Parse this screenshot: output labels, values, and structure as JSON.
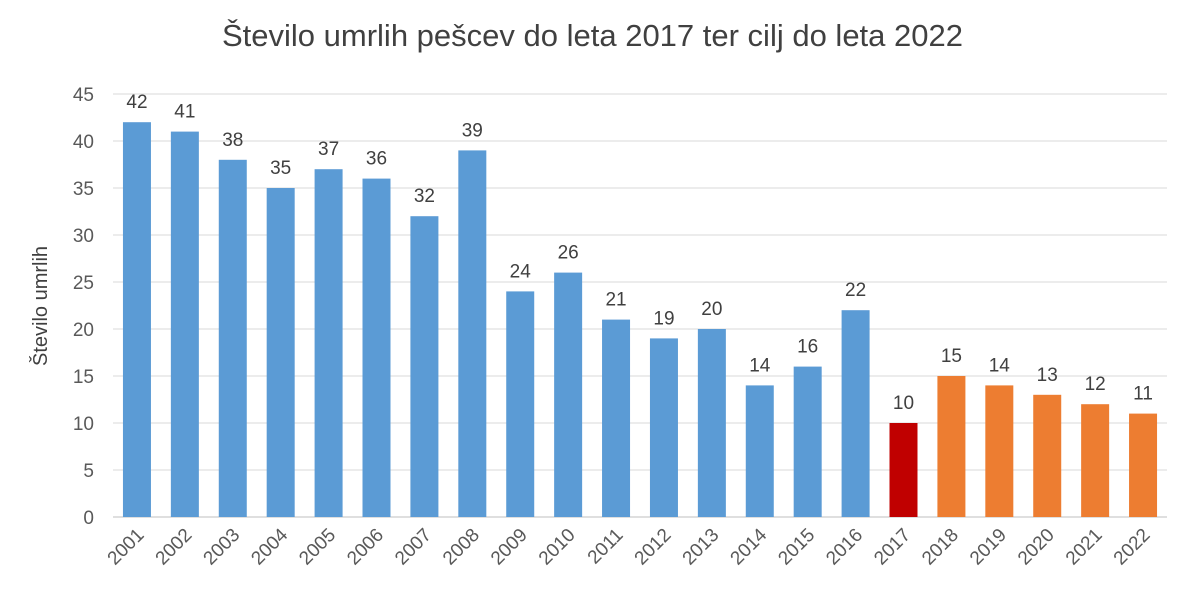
{
  "chart_data": {
    "type": "bar",
    "title": "Število umrlih pešcev do leta 2017 ter cilj do leta 2022",
    "xlabel": "",
    "ylabel": "Število umrlih",
    "ylim": [
      0,
      45
    ],
    "yticks": [
      0,
      5,
      10,
      15,
      20,
      25,
      30,
      35,
      40,
      45
    ],
    "grid": true,
    "legend": "none",
    "categories": [
      "2001",
      "2002",
      "2003",
      "2004",
      "2005",
      "2006",
      "2007",
      "2008",
      "2009",
      "2010",
      "2011",
      "2012",
      "2013",
      "2014",
      "2015",
      "2016",
      "2017",
      "2018",
      "2019",
      "2020",
      "2021",
      "2022"
    ],
    "values": [
      42,
      41,
      38,
      35,
      37,
      36,
      32,
      39,
      24,
      26,
      21,
      19,
      20,
      14,
      16,
      22,
      10,
      15,
      14,
      13,
      12,
      11
    ],
    "bar_colors": [
      "#5b9bd5",
      "#5b9bd5",
      "#5b9bd5",
      "#5b9bd5",
      "#5b9bd5",
      "#5b9bd5",
      "#5b9bd5",
      "#5b9bd5",
      "#5b9bd5",
      "#5b9bd5",
      "#5b9bd5",
      "#5b9bd5",
      "#5b9bd5",
      "#5b9bd5",
      "#5b9bd5",
      "#5b9bd5",
      "#c00000",
      "#ed7d31",
      "#ed7d31",
      "#ed7d31",
      "#ed7d31",
      "#ed7d31"
    ],
    "colors": {
      "actual": "#5b9bd5",
      "2017": "#c00000",
      "target": "#ed7d31",
      "grid": "#d9d9d9"
    }
  }
}
